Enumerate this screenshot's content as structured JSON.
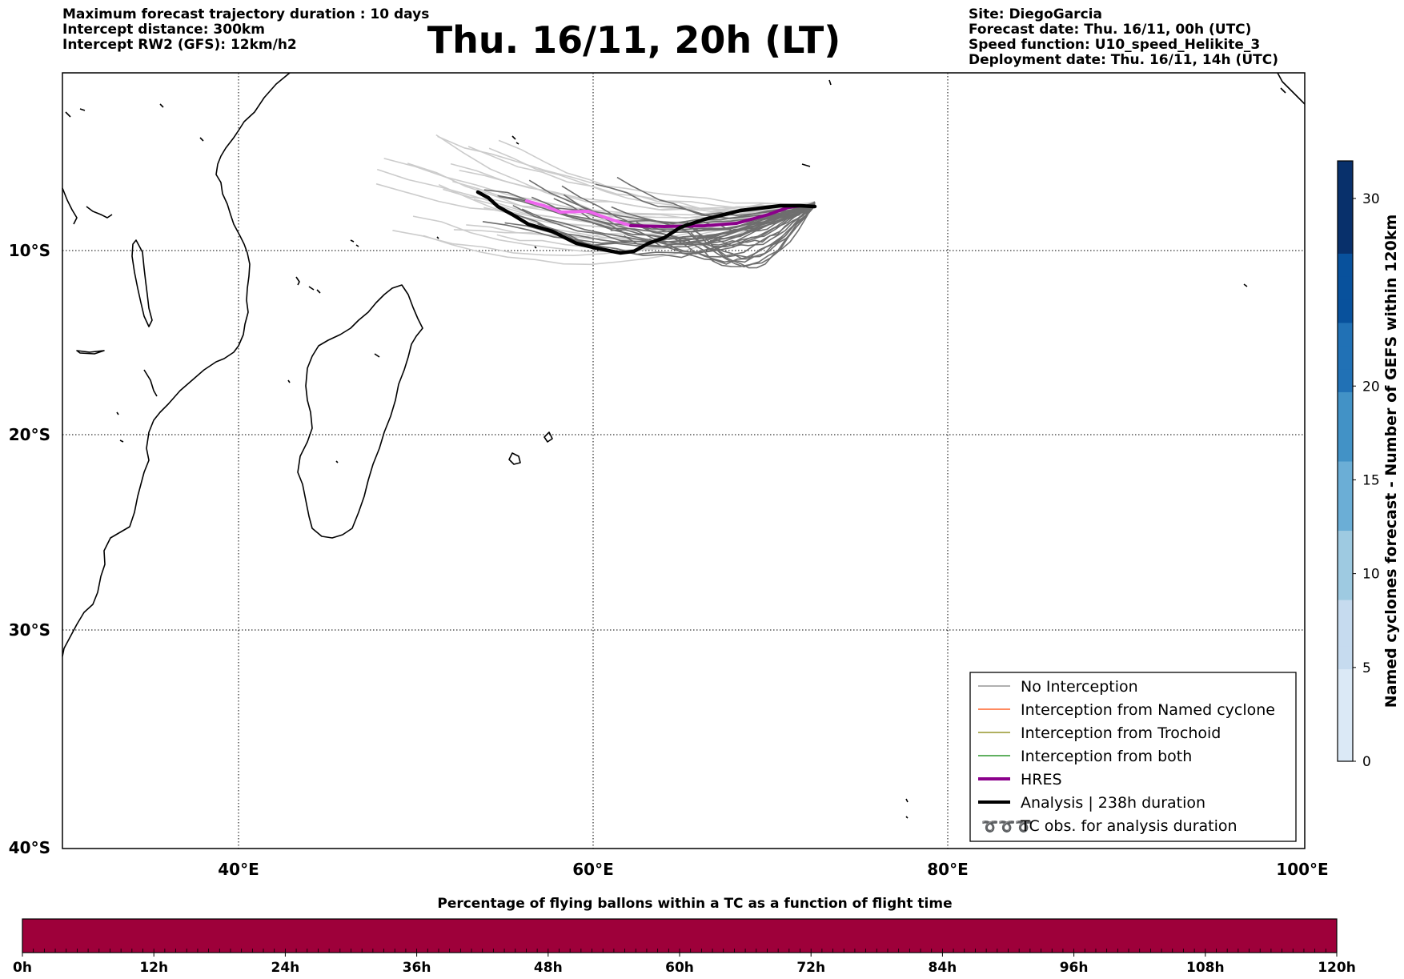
{
  "header": {
    "left_lines": [
      "Maximum forecast trajectory duration : 10 days",
      "Intercept distance: 300km",
      "Intercept RW2 (GFS):  12km/h2"
    ],
    "right_lines": [
      "Site: DiegoGarcia",
      "Forecast date: Thu. 16/11, 00h (UTC)",
      "Speed function: U10_speed_Helikite_3",
      "Deployment date: Thu. 16/11, 14h (UTC)"
    ],
    "title": "Thu. 16/11, 20h (LT)"
  },
  "map": {
    "lat_labels": [
      "10°S",
      "20°S",
      "30°S",
      "40°S"
    ],
    "lon_labels": [
      "40°E",
      "60°E",
      "80°E",
      "100°E"
    ],
    "extent": {
      "lon_min": 30,
      "lon_max": 100,
      "lat_top": -1,
      "lat_bottom": -40
    },
    "colors": {
      "ensemble_dark": "#6e6e6e",
      "ensemble_light": "#cccccc",
      "hres": "#8b008b",
      "hres_light": "#ee66ee",
      "analysis": "#000000"
    }
  },
  "legend": {
    "items": [
      {
        "label": "No Interception",
        "color": "#808080",
        "style": "thin"
      },
      {
        "label": "Interception from Named cyclone",
        "color": "#ff4500",
        "style": "thin"
      },
      {
        "label": "Interception from Trochoid",
        "color": "#808000",
        "style": "thin"
      },
      {
        "label": "Interception from both",
        "color": "#008000",
        "style": "thin"
      },
      {
        "label": "HRES",
        "color": "#8b008b",
        "style": "thick"
      },
      {
        "label": "Analysis | 238h duration",
        "color": "#000000",
        "style": "thick"
      },
      {
        "label": "TC obs. for analysis duration",
        "color": "#000000",
        "style": "symbol",
        "symbol": "➰➰➰"
      }
    ]
  },
  "colorbar_right": {
    "label": "Named cyclones forecast - Number of GEFS within 120km",
    "ticks": [
      "0",
      "5",
      "10",
      "15",
      "20",
      "30"
    ],
    "tick_values": [
      0,
      5,
      10,
      15,
      20,
      30
    ],
    "max": 32,
    "colors": [
      "#dbe9f6",
      "#c6dbef",
      "#9ecae1",
      "#6baed6",
      "#4292c6",
      "#2171b5",
      "#08519c",
      "#08306b"
    ]
  },
  "colorbar_bottom": {
    "title": "Percentage of flying ballons within a TC as a function of flight time",
    "ticks": [
      "0h",
      "12h",
      "24h",
      "36h",
      "48h",
      "60h",
      "72h",
      "84h",
      "96h",
      "108h",
      "120h"
    ],
    "fill_color": "#9e003a",
    "percent": 0
  }
}
